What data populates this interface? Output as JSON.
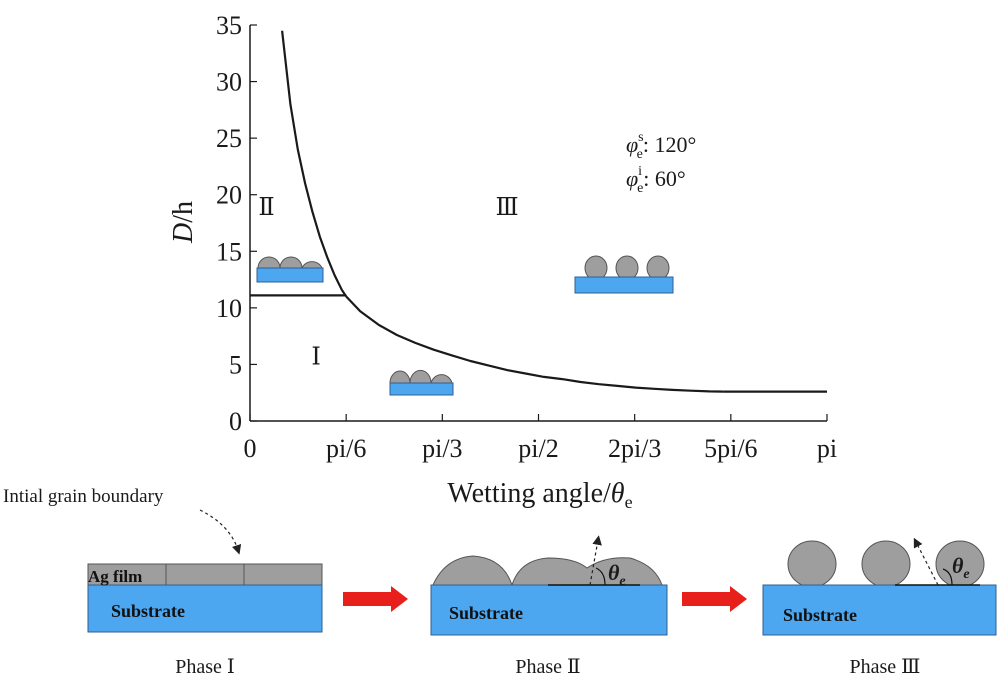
{
  "chart_data": {
    "type": "line",
    "xlabel_main": "Wetting angle/",
    "xlabel_symbol": "θ",
    "xlabel_sub": "e",
    "ylabel_italic": "D",
    "ylabel_rest": "/h",
    "xlim": [
      0,
      3.14159
    ],
    "ylim": [
      0,
      35
    ],
    "x_ticks": [
      {
        "value": 0,
        "label": "0"
      },
      {
        "value": 0.5236,
        "label": "pi/6"
      },
      {
        "value": 1.0472,
        "label": "pi/3"
      },
      {
        "value": 1.5708,
        "label": "pi/2"
      },
      {
        "value": 2.0944,
        "label": "2pi/3"
      },
      {
        "value": 2.618,
        "label": "5pi/6"
      },
      {
        "value": 3.1416,
        "label": "pi"
      }
    ],
    "y_ticks": [
      0,
      5,
      10,
      15,
      20,
      25,
      30,
      35
    ],
    "series": [
      {
        "values_xy": [
          [
            0.175,
            34.5
          ],
          [
            0.22,
            28.0
          ],
          [
            0.26,
            24.0
          ],
          [
            0.3,
            21.0
          ],
          [
            0.34,
            18.5
          ],
          [
            0.38,
            16.3
          ],
          [
            0.42,
            14.5
          ],
          [
            0.46,
            12.9
          ],
          [
            0.5,
            11.6
          ],
          [
            0.5236,
            11.0
          ]
        ]
      },
      {
        "values_xy": [
          [
            0.5236,
            11.0
          ],
          [
            0.6,
            9.7
          ],
          [
            0.7,
            8.5
          ],
          [
            0.8,
            7.6
          ],
          [
            0.9,
            6.9
          ],
          [
            1.0,
            6.3
          ],
          [
            1.1,
            5.8
          ],
          [
            1.2,
            5.3
          ],
          [
            1.3,
            4.9
          ],
          [
            1.4,
            4.5
          ],
          [
            1.5,
            4.2
          ],
          [
            1.6,
            3.9
          ],
          [
            1.7,
            3.7
          ],
          [
            1.8,
            3.45
          ],
          [
            1.9,
            3.25
          ],
          [
            2.0,
            3.1
          ],
          [
            2.1,
            2.95
          ],
          [
            2.2,
            2.85
          ],
          [
            2.3,
            2.75
          ],
          [
            2.4,
            2.68
          ],
          [
            2.5,
            2.62
          ],
          [
            2.58,
            2.6
          ]
        ]
      },
      {
        "values_xy": [
          [
            2.58,
            2.6
          ],
          [
            3.1416,
            2.6
          ]
        ]
      },
      {
        "values_xy": [
          [
            0,
            11.1
          ],
          [
            0.5236,
            11.1
          ]
        ]
      }
    ],
    "region_labels": [
      {
        "label": "Ⅱ",
        "x": 0.09,
        "y": 18.2
      },
      {
        "label": "Ⅰ",
        "x": 0.36,
        "y": 5.0
      },
      {
        "label": "Ⅲ",
        "x": 1.4,
        "y": 18.2
      }
    ],
    "annotations": {
      "line1_symbol": "φ",
      "line1_sup": "s",
      "line1_sub": "e",
      "line1_value": ": 120°",
      "line2_symbol": "φ",
      "line2_sup": "i",
      "line2_sub": "e",
      "line2_value": ": 60°"
    }
  },
  "schematic": {
    "initial_gb_label": "Intial grain boundary",
    "ag_film_label": "Ag film",
    "substrate_label": "Substrate",
    "theta_symbol": "θ",
    "theta_sub": "e",
    "phase_labels": [
      "Phase Ⅰ",
      "Phase Ⅱ",
      "Phase Ⅲ"
    ]
  },
  "colors": {
    "substrate": "#4da6f0",
    "grain": "#9e9e9e",
    "arrow": "#e8201b",
    "curve": "#1a1a1a"
  }
}
